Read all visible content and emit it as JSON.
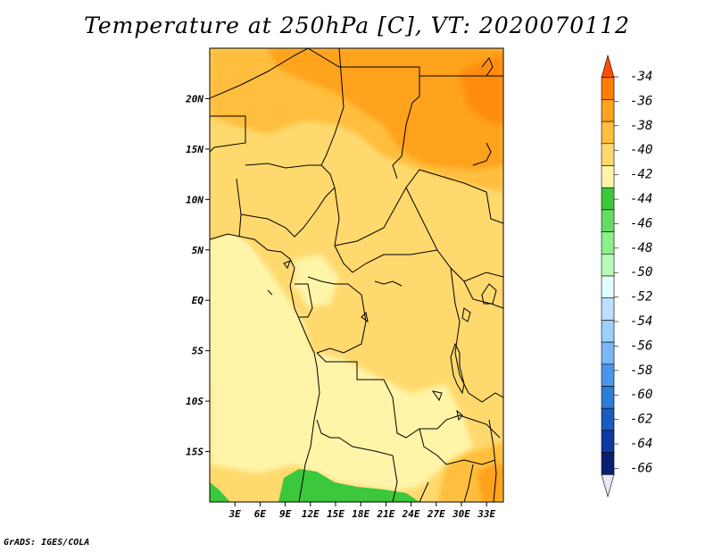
{
  "title": "Temperature at 250hPa [C], VT: 2020070112",
  "credit": "GrADS: IGES/COLA",
  "map": {
    "lon_range": [
      0,
      35
    ],
    "lat_range": [
      -20,
      25
    ],
    "lon_ticks": [
      "3E",
      "6E",
      "9E",
      "12E",
      "15E",
      "18E",
      "21E",
      "24E",
      "27E",
      "30E",
      "33E"
    ],
    "lat_ticks": [
      "20N",
      "15N",
      "10N",
      "5N",
      "EQ",
      "5S",
      "10S",
      "15S"
    ],
    "variable": "temperature",
    "level": "250hPa",
    "units": "C"
  },
  "colorbar": {
    "labels": [
      "-34",
      "-36",
      "-38",
      "-40",
      "-42",
      "-44",
      "-46",
      "-48",
      "-50",
      "-52",
      "-54",
      "-56",
      "-58",
      "-60",
      "-62",
      "-64",
      "-66"
    ],
    "colors": [
      "#ff4e00",
      "#ff7f00",
      "#ffa21f",
      "#ffbe3c",
      "#ffd96e",
      "#fff4a8",
      "#3cc83c",
      "#64dc64",
      "#8cf08c",
      "#b9fab9",
      "#e1ffff",
      "#bde0ff",
      "#9ccffa",
      "#7ab8f5",
      "#4a96eb",
      "#2c7dd6",
      "#1a5cbf",
      "#0c3a9e",
      "#0a2070",
      "#e8e8f8"
    ]
  }
}
